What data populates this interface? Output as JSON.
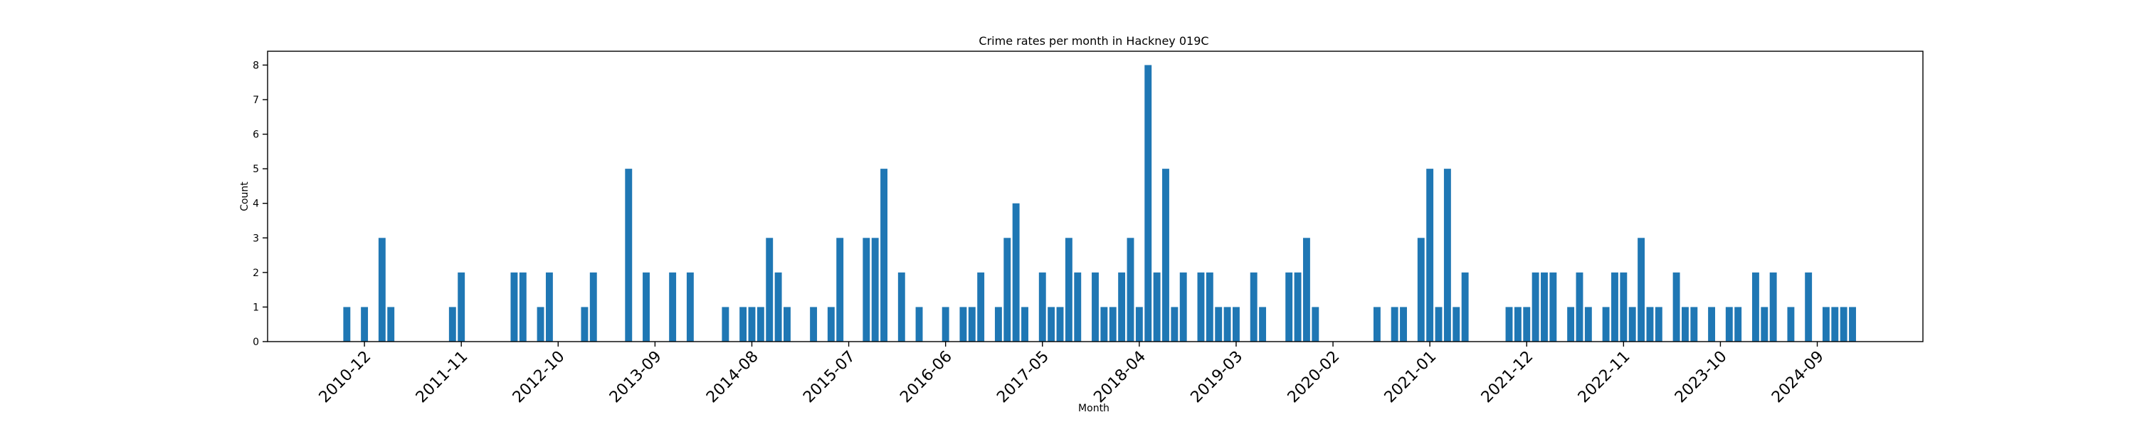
{
  "chart_data": {
    "type": "bar",
    "title": "Crime rates per month in Hackney 019C",
    "xlabel": "Month",
    "ylabel": "Count",
    "ylim": [
      0,
      8.4
    ],
    "yticks": [
      0,
      1,
      2,
      3,
      4,
      5,
      6,
      7,
      8
    ],
    "xlim": [
      "2010-01",
      "2025-09"
    ],
    "xtick_labels": [
      "2010-12",
      "2011-11",
      "2012-10",
      "2013-09",
      "2014-08",
      "2015-07",
      "2016-06",
      "2017-05",
      "2018-04",
      "2019-03",
      "2020-02",
      "2021-01",
      "2021-12",
      "2022-11",
      "2023-10",
      "2024-09"
    ],
    "color": "#1f77b4",
    "grid": false,
    "legend": "none",
    "x": [
      "2010-10",
      "2010-12",
      "2011-02",
      "2011-03",
      "2011-10",
      "2011-11",
      "2012-05",
      "2012-06",
      "2012-08",
      "2012-09",
      "2013-01",
      "2013-02",
      "2013-06",
      "2013-08",
      "2013-11",
      "2014-01",
      "2014-05",
      "2014-07",
      "2014-08",
      "2014-09",
      "2014-10",
      "2014-11",
      "2014-12",
      "2015-03",
      "2015-05",
      "2015-06",
      "2015-09",
      "2015-10",
      "2015-11",
      "2016-01",
      "2016-03",
      "2016-06",
      "2016-08",
      "2016-09",
      "2016-10",
      "2016-12",
      "2017-01",
      "2017-02",
      "2017-03",
      "2017-05",
      "2017-06",
      "2017-07",
      "2017-08",
      "2017-09",
      "2017-11",
      "2017-12",
      "2018-01",
      "2018-02",
      "2018-03",
      "2018-04",
      "2018-05",
      "2018-06",
      "2018-07",
      "2018-08",
      "2018-09",
      "2018-11",
      "2018-12",
      "2019-01",
      "2019-02",
      "2019-03",
      "2019-05",
      "2019-06",
      "2019-09",
      "2019-10",
      "2019-11",
      "2019-12",
      "2020-07",
      "2020-09",
      "2020-10",
      "2020-12",
      "2021-01",
      "2021-02",
      "2021-03",
      "2021-04",
      "2021-05",
      "2021-10",
      "2021-11",
      "2021-12",
      "2022-01",
      "2022-02",
      "2022-03",
      "2022-05",
      "2022-06",
      "2022-07",
      "2022-09",
      "2022-10",
      "2022-11",
      "2022-12",
      "2023-01",
      "2023-02",
      "2023-03",
      "2023-05",
      "2023-06",
      "2023-07",
      "2023-09",
      "2023-11",
      "2023-12",
      "2024-02",
      "2024-03",
      "2024-04",
      "2024-06",
      "2024-08",
      "2024-10",
      "2024-11",
      "2024-12",
      "2025-01"
    ],
    "values": [
      1,
      1,
      3,
      1,
      1,
      2,
      2,
      2,
      1,
      2,
      1,
      2,
      5,
      2,
      2,
      2,
      1,
      1,
      1,
      1,
      3,
      2,
      1,
      1,
      1,
      3,
      3,
      3,
      5,
      2,
      1,
      1,
      1,
      1,
      2,
      1,
      3,
      4,
      1,
      2,
      1,
      1,
      3,
      2,
      2,
      1,
      1,
      2,
      3,
      1,
      8,
      2,
      5,
      1,
      2,
      2,
      2,
      1,
      1,
      1,
      2,
      1,
      2,
      2,
      3,
      1,
      1,
      1,
      1,
      3,
      5,
      1,
      5,
      1,
      2,
      1,
      1,
      1,
      2,
      2,
      2,
      1,
      2,
      1,
      1,
      2,
      2,
      1,
      3,
      1,
      1,
      2,
      1,
      1,
      1,
      1,
      1,
      2,
      1,
      2,
      1,
      2,
      1,
      1,
      1,
      1
    ]
  }
}
